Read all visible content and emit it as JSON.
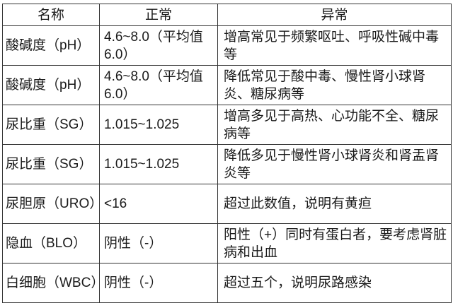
{
  "headers": [
    "名称",
    "正常",
    "异常"
  ],
  "rows": [
    {
      "name": "酸碱度（pH）",
      "normal": "4.6~8.0（平均值6.0）",
      "abnormal": "增高常见于频繁呕吐、呼吸性碱中毒等"
    },
    {
      "name": "酸碱度（pH）",
      "normal": "4.6~8.0（平均值6.0）",
      "abnormal": "降低常见于酸中毒、慢性肾小球肾炎、糖尿病等"
    },
    {
      "name": "尿比重（SG）",
      "normal": "1.015~1.025",
      "abnormal": "增高多见于高热、心功能不全、糖尿病等"
    },
    {
      "name": "尿比重（SG）",
      "normal": "1.015~1.025",
      "abnormal": "降低多见于慢性肾小球肾炎和肾盂肾炎等"
    },
    {
      "name": "尿胆原（URO）",
      "normal": "<16",
      "abnormal": "超过此数值，说明有黄疸"
    },
    {
      "name": "隐血（BLO）",
      "normal": "阴性（-）",
      "abnormal": "阳性（+）同时有蛋白者，要考虑肾脏病和出血"
    },
    {
      "name": "白细胞（WBC）",
      "normal": "阴性（-）",
      "abnormal": "超过五个，说明尿路感染"
    }
  ]
}
